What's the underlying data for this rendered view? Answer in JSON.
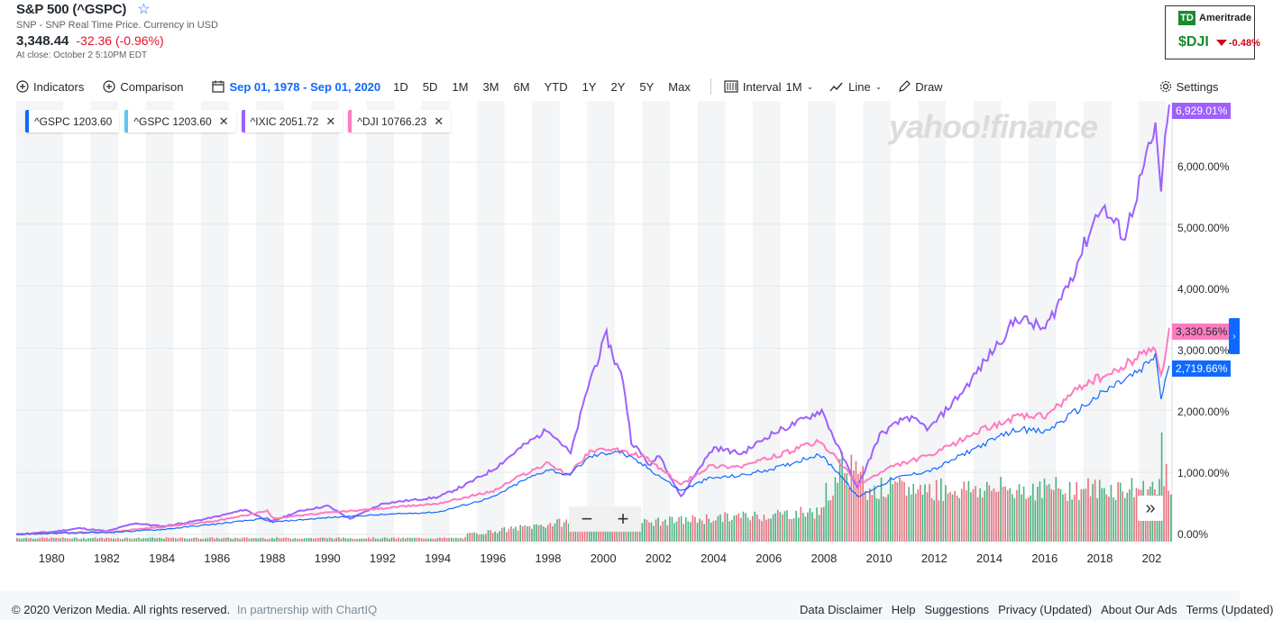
{
  "header": {
    "title": "S&P 500 (^GSPC)",
    "subtitle": "SNP - SNP Real Time Price. Currency in USD",
    "price": "3,348.44",
    "change": "-32.36 (-0.96%)",
    "close_time": "At close: October 2 5:10PM EDT"
  },
  "ad": {
    "brand": "Ameritrade",
    "symbol": "$DJI",
    "change": "-0.48%"
  },
  "toolbar": {
    "indicators": "Indicators",
    "comparison": "Comparison",
    "date_range": "Sep 01, 1978 - Sep 01, 2020",
    "ranges": [
      "1D",
      "5D",
      "1M",
      "3M",
      "6M",
      "YTD",
      "1Y",
      "2Y",
      "5Y",
      "Max"
    ],
    "interval_label": "Interval",
    "interval_value": "1M",
    "chart_type": "Line",
    "draw": "Draw",
    "settings": "Settings"
  },
  "chips": [
    {
      "label": "^GSPC 1203.60",
      "color": "#0f69ff",
      "removable": false
    },
    {
      "label": "^GSPC 1203.60",
      "color": "#58c8f2",
      "removable": true
    },
    {
      "label": "^IXIC 2051.72",
      "color": "#9d61fd",
      "removable": true
    },
    {
      "label": "^DJI 10766.23",
      "color": "#ff7bc0",
      "removable": true
    }
  ],
  "watermark": "yahoo!finance",
  "badges": [
    {
      "label": "6,929.01%",
      "color": "#9d61fd"
    },
    {
      "label": "3,330.56%",
      "color": "#ff7bc0"
    },
    {
      "label": "2,719.66%",
      "color": "#0f69ff"
    }
  ],
  "footer": {
    "copyright": "© 2020 Verizon Media. All rights reserved.",
    "partner": "In partnership with ChartIQ",
    "links": [
      "Data Disclaimer",
      "Help",
      "Suggestions",
      "Privacy (Updated)",
      "About Our Ads",
      "Terms (Updated)"
    ]
  },
  "chart_data": {
    "type": "line",
    "x_ticks": [
      "1980",
      "1982",
      "1984",
      "1986",
      "1988",
      "1990",
      "1992",
      "1994",
      "1996",
      "1998",
      "2000",
      "2002",
      "2004",
      "2006",
      "2008",
      "2010",
      "2012",
      "2014",
      "2016",
      "2018",
      "202"
    ],
    "y_ticks": [
      "6,000.00%",
      "5,000.00%",
      "4,000.00%",
      "3,000.00%",
      "2,000.00%",
      "1,000.00%",
      "0.00%"
    ],
    "ylim": [
      0,
      6900
    ],
    "series": [
      {
        "name": "^IXIC",
        "color": "#9d61fd",
        "points": [
          [
            1978.7,
            0
          ],
          [
            1980,
            40
          ],
          [
            1981,
            100
          ],
          [
            1982,
            50
          ],
          [
            1983,
            180
          ],
          [
            1984,
            130
          ],
          [
            1985,
            200
          ],
          [
            1986,
            290
          ],
          [
            1987,
            400
          ],
          [
            1987.9,
            200
          ],
          [
            1989,
            380
          ],
          [
            1990,
            460
          ],
          [
            1990.8,
            250
          ],
          [
            1992,
            500
          ],
          [
            1994,
            600
          ],
          [
            1995,
            800
          ],
          [
            1996,
            1050
          ],
          [
            1997,
            1400
          ],
          [
            1998,
            1700
          ],
          [
            1998.8,
            1300
          ],
          [
            1999.5,
            2500
          ],
          [
            2000.1,
            3200
          ],
          [
            2000.4,
            2800
          ],
          [
            2000.7,
            2500
          ],
          [
            2001,
            1500
          ],
          [
            2001.7,
            1100
          ],
          [
            2002,
            1300
          ],
          [
            2002.8,
            600
          ],
          [
            2003.5,
            1100
          ],
          [
            2004,
            1400
          ],
          [
            2005,
            1300
          ],
          [
            2006,
            1600
          ],
          [
            2007,
            1800
          ],
          [
            2007.9,
            2000
          ],
          [
            2008.5,
            1400
          ],
          [
            2009.2,
            750
          ],
          [
            2010,
            1600
          ],
          [
            2011,
            1900
          ],
          [
            2011.8,
            1700
          ],
          [
            2013,
            2300
          ],
          [
            2014,
            2900
          ],
          [
            2015,
            3500
          ],
          [
            2016,
            3300
          ],
          [
            2017,
            4200
          ],
          [
            2018,
            5300
          ],
          [
            2018.9,
            4800
          ],
          [
            2019.5,
            5800
          ],
          [
            2020,
            6500
          ],
          [
            2020.2,
            5600
          ],
          [
            2020.5,
            6929
          ]
        ]
      },
      {
        "name": "^DJI",
        "color": "#ff7bc0",
        "points": [
          [
            1978.7,
            0
          ],
          [
            1980,
            20
          ],
          [
            1982,
            40
          ],
          [
            1984,
            120
          ],
          [
            1986,
            220
          ],
          [
            1987.8,
            380
          ],
          [
            1988,
            260
          ],
          [
            1990,
            350
          ],
          [
            1992,
            420
          ],
          [
            1994,
            500
          ],
          [
            1996,
            700
          ],
          [
            1997,
            950
          ],
          [
            1998,
            1150
          ],
          [
            1998.7,
            950
          ],
          [
            1999.5,
            1350
          ],
          [
            2000.5,
            1350
          ],
          [
            2001.5,
            1250
          ],
          [
            2002.8,
            800
          ],
          [
            2003.8,
            1100
          ],
          [
            2005,
            1100
          ],
          [
            2006.5,
            1300
          ],
          [
            2007.8,
            1500
          ],
          [
            2008.5,
            1200
          ],
          [
            2009.2,
            800
          ],
          [
            2010.5,
            1100
          ],
          [
            2012,
            1300
          ],
          [
            2013.5,
            1650
          ],
          [
            2015,
            1900
          ],
          [
            2016,
            1900
          ],
          [
            2017.5,
            2450
          ],
          [
            2018.5,
            2600
          ],
          [
            2019.5,
            2900
          ],
          [
            2020,
            3050
          ],
          [
            2020.2,
            2500
          ],
          [
            2020.5,
            3330
          ]
        ]
      },
      {
        "name": "^GSPC",
        "color": "#0f69ff",
        "points": [
          [
            1978.7,
            0
          ],
          [
            1980,
            20
          ],
          [
            1982,
            30
          ],
          [
            1984,
            80
          ],
          [
            1986,
            170
          ],
          [
            1987.8,
            260
          ],
          [
            1988,
            200
          ],
          [
            1990,
            270
          ],
          [
            1992,
            320
          ],
          [
            1994,
            360
          ],
          [
            1996,
            600
          ],
          [
            1997,
            850
          ],
          [
            1998,
            1050
          ],
          [
            1998.7,
            950
          ],
          [
            1999.5,
            1250
          ],
          [
            2000.5,
            1350
          ],
          [
            2001.5,
            1100
          ],
          [
            2002.8,
            700
          ],
          [
            2003.8,
            900
          ],
          [
            2005,
            950
          ],
          [
            2006.5,
            1100
          ],
          [
            2007.8,
            1300
          ],
          [
            2008.5,
            1000
          ],
          [
            2009.2,
            600
          ],
          [
            2010.5,
            900
          ],
          [
            2012,
            1050
          ],
          [
            2013.5,
            1400
          ],
          [
            2015,
            1700
          ],
          [
            2016,
            1650
          ],
          [
            2017.5,
            2100
          ],
          [
            2018.5,
            2400
          ],
          [
            2019.5,
            2650
          ],
          [
            2020,
            2900
          ],
          [
            2020.2,
            2200
          ],
          [
            2020.5,
            2720
          ]
        ]
      }
    ]
  }
}
